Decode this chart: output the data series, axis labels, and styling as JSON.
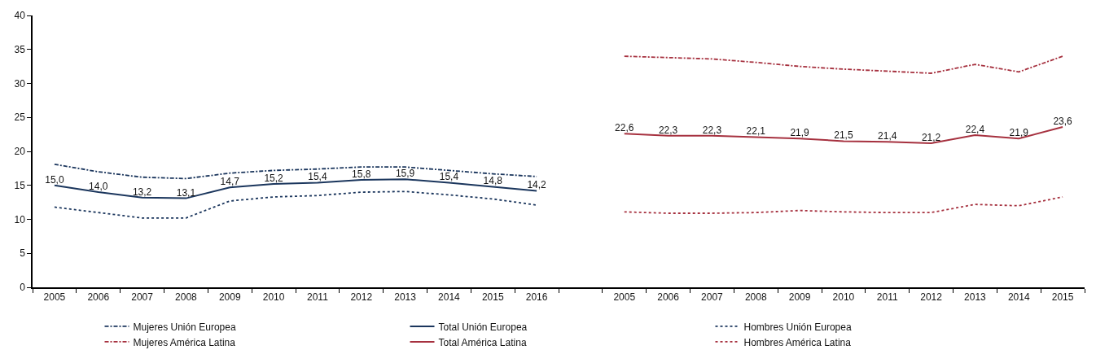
{
  "chart_data": {
    "type": "line",
    "categories": [
      "2005",
      "2006",
      "2007",
      "2008",
      "2009",
      "2010",
      "2011",
      "2012",
      "2013",
      "2014",
      "2015",
      "2016",
      null,
      "2005",
      "2006",
      "2007",
      "2008",
      "2009",
      "2010",
      "2011",
      "2012",
      "2013",
      "2014",
      "2015"
    ],
    "ylim": [
      0,
      40
    ],
    "yticks": [
      0,
      5,
      10,
      15,
      20,
      25,
      30,
      35,
      40
    ],
    "legend": "bottom",
    "series": [
      {
        "name": "Mujeres Unión Europea",
        "color": "#1b365d",
        "line_style": "dashdot",
        "values": [
          18.1,
          17.0,
          16.2,
          16.0,
          16.8,
          17.2,
          17.4,
          17.7,
          17.7,
          17.2,
          16.7,
          16.3,
          null,
          null,
          null,
          null,
          null,
          null,
          null,
          null,
          null,
          null,
          null,
          null
        ]
      },
      {
        "name": "Total Unión Europea",
        "color": "#1b365d",
        "line_style": "solid",
        "values": [
          15.0,
          14.0,
          13.2,
          13.1,
          14.7,
          15.2,
          15.4,
          15.8,
          15.9,
          15.4,
          14.8,
          14.2,
          null,
          null,
          null,
          null,
          null,
          null,
          null,
          null,
          null,
          null,
          null,
          null
        ],
        "value_labels": [
          "15,0",
          "14,0",
          "13,2",
          "13,1",
          "14,7",
          "15,2",
          "15,4",
          "15,8",
          "15,9",
          "15,4",
          "14,8",
          "14,2",
          null,
          null,
          null,
          null,
          null,
          null,
          null,
          null,
          null,
          null,
          null,
          null
        ]
      },
      {
        "name": "Hombres Unión Europea",
        "color": "#1b365d",
        "line_style": "dotted",
        "values": [
          11.8,
          11.0,
          10.2,
          10.2,
          12.7,
          13.3,
          13.5,
          14.0,
          14.1,
          13.6,
          13.0,
          12.1,
          null,
          null,
          null,
          null,
          null,
          null,
          null,
          null,
          null,
          null,
          null,
          null
        ]
      },
      {
        "name": "Mujeres América Latina",
        "color": "#a6313f",
        "line_style": "dashdot",
        "values": [
          null,
          null,
          null,
          null,
          null,
          null,
          null,
          null,
          null,
          null,
          null,
          null,
          null,
          34.0,
          33.8,
          33.6,
          33.1,
          32.5,
          32.1,
          31.8,
          31.5,
          32.8,
          31.7,
          34.0
        ]
      },
      {
        "name": "Total América Latina",
        "color": "#a6313f",
        "line_style": "solid",
        "values": [
          null,
          null,
          null,
          null,
          null,
          null,
          null,
          null,
          null,
          null,
          null,
          null,
          null,
          22.6,
          22.3,
          22.3,
          22.1,
          21.9,
          21.5,
          21.4,
          21.2,
          22.4,
          21.9,
          23.6
        ],
        "value_labels": [
          null,
          null,
          null,
          null,
          null,
          null,
          null,
          null,
          null,
          null,
          null,
          null,
          null,
          "22,6",
          "22,3",
          "22,3",
          "22,1",
          "21,9",
          "21,5",
          "21,4",
          "21,2",
          "22,4",
          "21,9",
          "23,6"
        ]
      },
      {
        "name": "Hombres América Latina",
        "color": "#a6313f",
        "line_style": "dotted",
        "values": [
          null,
          null,
          null,
          null,
          null,
          null,
          null,
          null,
          null,
          null,
          null,
          null,
          null,
          11.1,
          10.9,
          10.9,
          11.0,
          11.3,
          11.1,
          11.0,
          11.0,
          12.2,
          12.0,
          13.3
        ]
      }
    ]
  }
}
